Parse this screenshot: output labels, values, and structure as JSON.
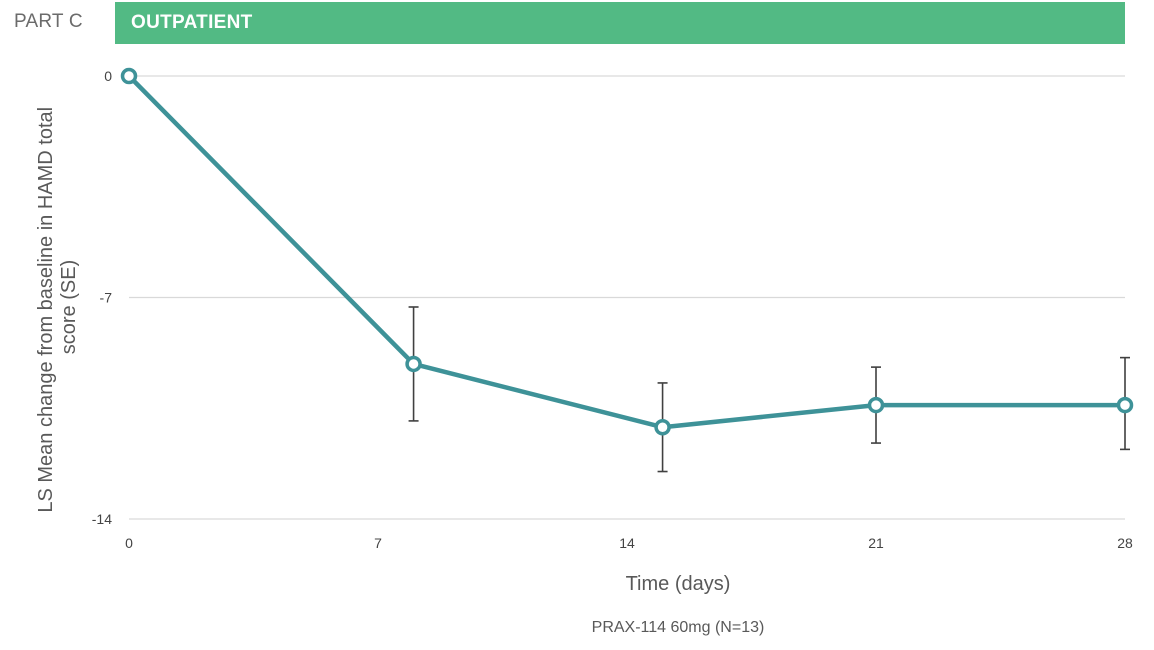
{
  "header": {
    "part_label": "PART C",
    "banner_title": "OUTPATIENT"
  },
  "colors": {
    "banner": "#52ba84",
    "series": "#3e9298",
    "gridline": "#d9d9d9",
    "error_bar": "#404040"
  },
  "chart_data": {
    "type": "line",
    "title": "",
    "xlabel": "Time (days)",
    "ylabel_lines": [
      "LS Mean change from baseline in HAMD total",
      "score (SE)"
    ],
    "xlim": [
      0,
      28
    ],
    "ylim": [
      -14,
      0
    ],
    "x_ticks": [
      0,
      7,
      14,
      21,
      28
    ],
    "x_tick_labels": [
      "0",
      "7",
      "14",
      "21",
      "28"
    ],
    "y_ticks": [
      0,
      -7,
      -14
    ],
    "y_tick_labels": [
      "0",
      "-7",
      "-14"
    ],
    "grid": true,
    "legend": "bottom-center",
    "series": [
      {
        "name": "PRAX-114 60mg (N=13)",
        "x": [
          0,
          8,
          15,
          21,
          28
        ],
        "values": [
          0,
          -9.1,
          -11.1,
          -10.4,
          -10.4
        ],
        "error_low": [
          0,
          -10.9,
          -12.5,
          -11.6,
          -11.8
        ],
        "error_high": [
          0,
          -7.3,
          -9.7,
          -9.2,
          -8.9
        ]
      }
    ]
  }
}
